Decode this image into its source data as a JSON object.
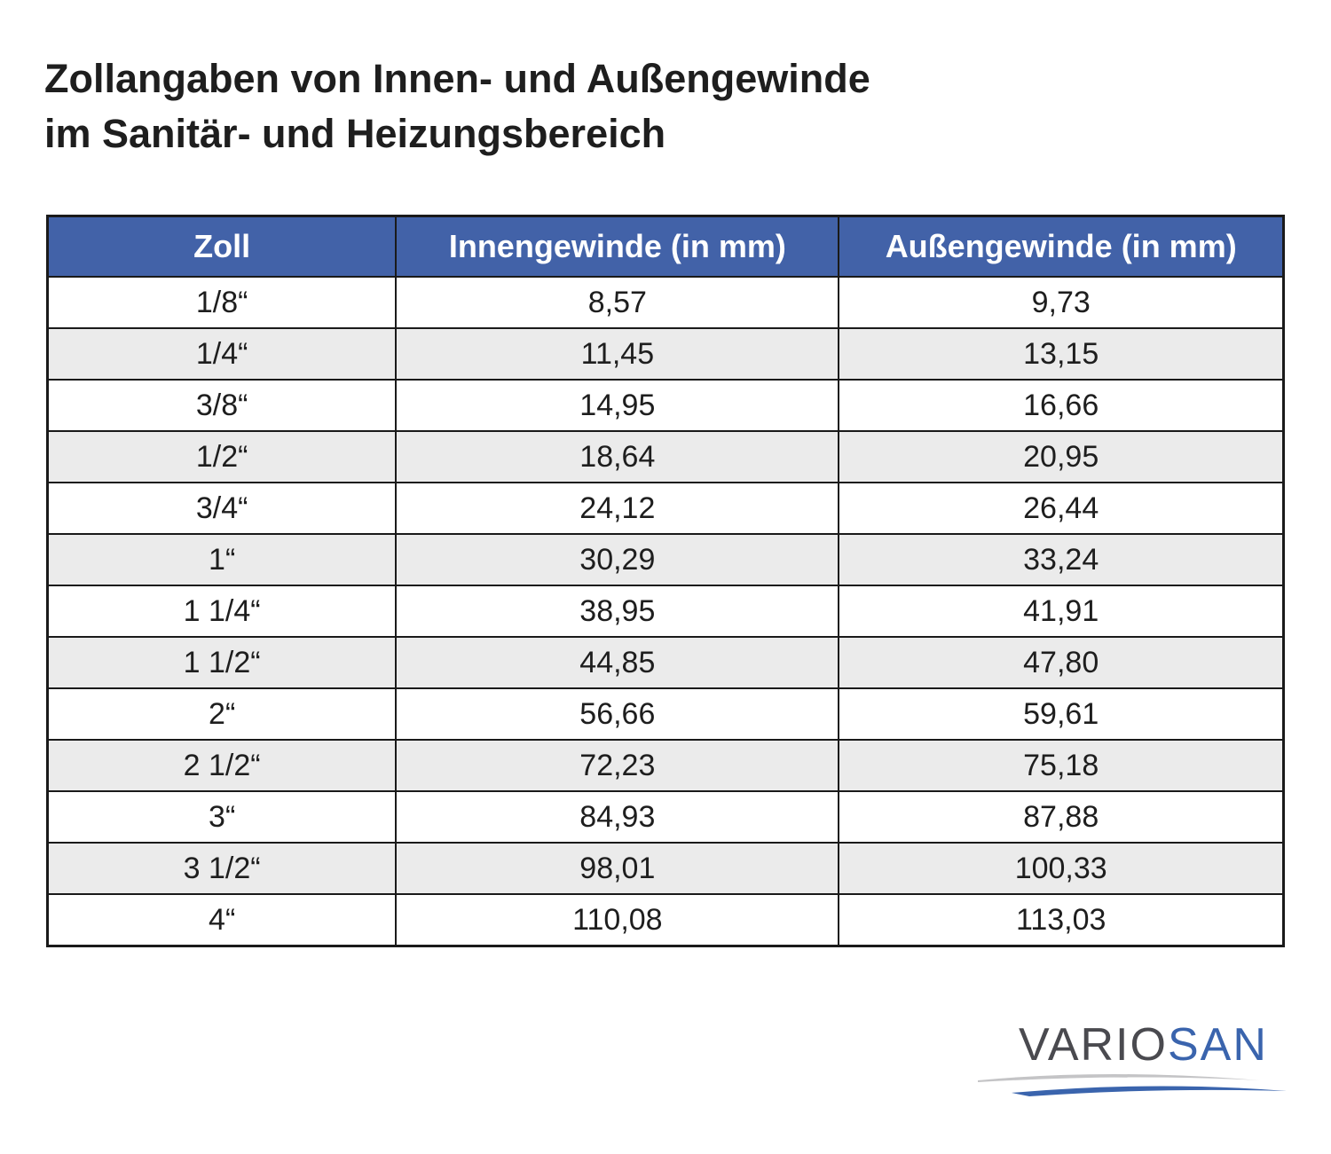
{
  "title_line1": "Zollangaben von Innen- und Außengewinde",
  "title_line2": "im Sanitär- und Heizungsbereich",
  "table": {
    "headers": [
      "Zoll",
      "Innengewinde (in mm)",
      "Außengewinde (in mm)"
    ],
    "rows": [
      [
        "1/8“",
        "8,57",
        "9,73"
      ],
      [
        "1/4“",
        "11,45",
        "13,15"
      ],
      [
        "3/8“",
        "14,95",
        "16,66"
      ],
      [
        "1/2“",
        "18,64",
        "20,95"
      ],
      [
        "3/4“",
        "24,12",
        "26,44"
      ],
      [
        "1“",
        "30,29",
        "33,24"
      ],
      [
        "1 1/4“",
        "38,95",
        "41,91"
      ],
      [
        "1 1/2“",
        "44,85",
        "47,80"
      ],
      [
        "2“",
        "56,66",
        "59,61"
      ],
      [
        "2 1/2“",
        "72,23",
        "75,18"
      ],
      [
        "3“",
        "84,93",
        "87,88"
      ],
      [
        "3 1/2“",
        "98,01",
        "100,33"
      ],
      [
        "4“",
        "110,08",
        "113,03"
      ]
    ]
  },
  "logo": {
    "part1": "VARIO",
    "part2": "SAN"
  },
  "colors": {
    "header": "#4262a8",
    "alt_row": "#ebebeb",
    "logo_blue": "#3a64ad",
    "logo_gray": "#4a4a4f"
  }
}
